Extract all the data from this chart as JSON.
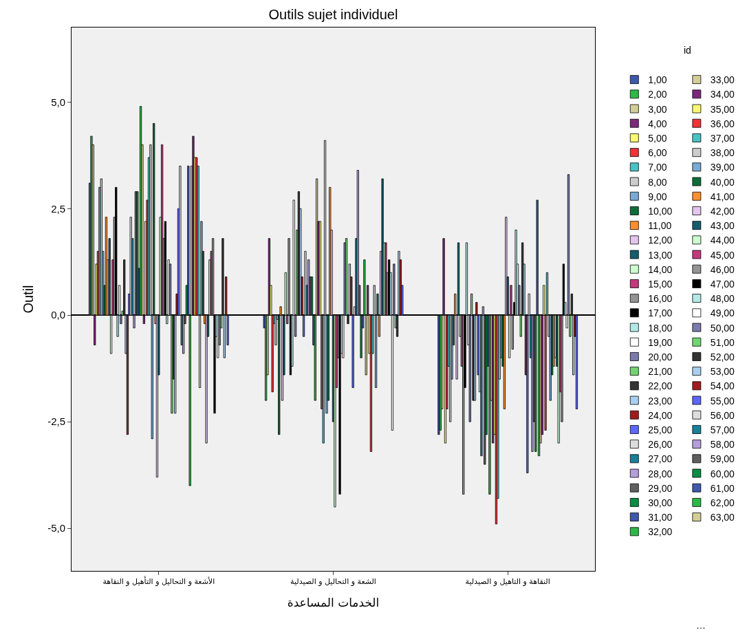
{
  "chart_data": {
    "type": "bar",
    "title": "Outils sujet individuel",
    "xlabel": "الخدمات المساعدة",
    "ylabel": "Outil",
    "legend_title": "id",
    "legend": "right",
    "categories": [
      "الأشعة و التحاليل و التأهيل و النقاهة",
      "الشعة و التحاليل و الصيدلية",
      "النقاهة و التاهيل و الصيدلية"
    ],
    "ylim": [
      -6.0,
      6.75
    ],
    "yticks": [
      {
        "value": -5,
        "label": "-5,0"
      },
      {
        "value": -2.5,
        "label": "-2,5"
      },
      {
        "value": 0,
        "label": "0,0"
      },
      {
        "value": 2.5,
        "label": "2,5"
      },
      {
        "value": 5,
        "label": "5,0"
      }
    ],
    "annotations": [
      "…"
    ],
    "series": [
      {
        "name": "1,00",
        "color": "#3e58ac",
        "values": [
          3.1,
          -0.3,
          -2.8
        ]
      },
      {
        "name": "2,00",
        "color": "#2eb848",
        "values": [
          4.2,
          -2.0,
          -2.7
        ]
      },
      {
        "name": "3,00",
        "color": "#d3ce97",
        "values": [
          4.0,
          -1.4,
          -2.2
        ]
      },
      {
        "name": "4,00",
        "color": "#7c287d",
        "values": [
          -0.7,
          1.8,
          1.8
        ]
      },
      {
        "name": "5,00",
        "color": "#fbf873",
        "values": [
          1.2,
          0.7,
          -3.0
        ]
      },
      {
        "name": "6,00",
        "color": "#ef3338",
        "values": [
          1.5,
          -1.8,
          -2.2
        ]
      },
      {
        "name": "7,00",
        "color": "#48c2c5",
        "values": [
          3.0,
          -0.2,
          -1.2
        ]
      },
      {
        "name": "8,00",
        "color": "#cccccc",
        "values": [
          3.2,
          -0.7,
          -2.5
        ]
      },
      {
        "name": "9,00",
        "color": "#7aaad5",
        "values": [
          1.5,
          -0.1,
          -1.5
        ]
      },
      {
        "name": "10,00",
        "color": "#0d6d3a",
        "values": [
          0.7,
          -2.8,
          -0.7
        ]
      },
      {
        "name": "11,00",
        "color": "#fd8f2f",
        "values": [
          2.3,
          0.2,
          0.5
        ]
      },
      {
        "name": "12,00",
        "color": "#e4c5f0",
        "values": [
          1.3,
          -2.0,
          -1.5
        ]
      },
      {
        "name": "13,00",
        "color": "#135d6d",
        "values": [
          1.8,
          -1.4,
          1.7
        ]
      },
      {
        "name": "14,00",
        "color": "#ccfece",
        "values": [
          -0.9,
          1.0,
          -0.5
        ]
      },
      {
        "name": "15,00",
        "color": "#c23a7c",
        "values": [
          1.3,
          -0.2,
          -1.2
        ]
      },
      {
        "name": "16,00",
        "color": "#939393",
        "values": [
          2.3,
          1.8,
          -4.2
        ]
      },
      {
        "name": "17,00",
        "color": "#000000",
        "values": [
          3.0,
          -1.4,
          -1.7
        ]
      },
      {
        "name": "18,00",
        "color": "#b3e8e8",
        "values": [
          -0.5,
          -1.2,
          1.7
        ]
      },
      {
        "name": "19,00",
        "color": "#ffffff",
        "values": [
          0.7,
          2.7,
          -0.7
        ]
      },
      {
        "name": "20,00",
        "color": "#7b7bad",
        "values": [
          -0.2,
          -0.5,
          -2.5
        ]
      },
      {
        "name": "21,00",
        "color": "#73d472",
        "values": [
          0.1,
          2.0,
          0.5
        ]
      },
      {
        "name": "22,00",
        "color": "#333333",
        "values": [
          1.3,
          2.9,
          -2.0
        ]
      },
      {
        "name": "23,00",
        "color": "#a9cff0",
        "values": [
          -0.9,
          2.5,
          -2.0
        ]
      },
      {
        "name": "24,00",
        "color": "#a01c1c",
        "values": [
          -2.8,
          0.9,
          0.3
        ]
      },
      {
        "name": "25,00",
        "color": "#5c67ff",
        "values": [
          0.5,
          -0.5,
          -1.4
        ]
      },
      {
        "name": "26,00",
        "color": "#dddddd",
        "values": [
          2.3,
          1.5,
          -1.8
        ]
      },
      {
        "name": "27,00",
        "color": "#1a7f9a",
        "values": [
          1.8,
          0.7,
          -3.3
        ]
      },
      {
        "name": "28,00",
        "color": "#b59fd8",
        "values": [
          -0.3,
          1.3,
          0.2
        ]
      },
      {
        "name": "29,00",
        "color": "#5f5f5f",
        "values": [
          2.9,
          0.9,
          -3.5
        ]
      },
      {
        "name": "30,00",
        "color": "#0b8c45",
        "values": [
          2.9,
          0.9,
          -2.8
        ]
      },
      {
        "name": "31,00",
        "color": "#3e58ac",
        "values": [
          1.1,
          -0.7,
          -1.2
        ]
      },
      {
        "name": "32,00",
        "color": "#2eb848",
        "values": [
          4.9,
          -2.0,
          -4.2
        ]
      },
      {
        "name": "33,00",
        "color": "#d3ce97",
        "values": [
          4.0,
          3.2,
          -2.0
        ]
      },
      {
        "name": "34,00",
        "color": "#7c287d",
        "values": [
          -0.2,
          2.2,
          -3.0
        ]
      },
      {
        "name": "35,00",
        "color": "#fbf873",
        "values": [
          2.2,
          2.2,
          -2.8
        ]
      },
      {
        "name": "36,00",
        "color": "#ef3338",
        "values": [
          2.7,
          -2.2,
          -4.9
        ]
      },
      {
        "name": "37,00",
        "color": "#48c2c5",
        "values": [
          3.7,
          -3.0,
          -4.3
        ]
      },
      {
        "name": "38,00",
        "color": "#cccccc",
        "values": [
          4.0,
          4.1,
          -1.5
        ]
      },
      {
        "name": "39,00",
        "color": "#7aaad5",
        "values": [
          -2.9,
          -2.3,
          -1.0
        ]
      },
      {
        "name": "40,00",
        "color": "#0d6d3a",
        "values": [
          4.5,
          -2.0,
          -1.2
        ]
      },
      {
        "name": "41,00",
        "color": "#fd8f2f",
        "values": [
          -0.2,
          3.0,
          -2.2
        ]
      },
      {
        "name": "42,00",
        "color": "#e4c5f0",
        "values": [
          -3.8,
          2.0,
          2.3
        ]
      },
      {
        "name": "43,00",
        "color": "#135d6d",
        "values": [
          -1.4,
          -2.5,
          0.9
        ]
      },
      {
        "name": "44,00",
        "color": "#ccfece",
        "values": [
          2.3,
          -4.5,
          -1.0
        ]
      },
      {
        "name": "45,00",
        "color": "#c23a7c",
        "values": [
          4.0,
          -1.7,
          0.7
        ]
      },
      {
        "name": "46,00",
        "color": "#939393",
        "values": [
          1.8,
          -1.0,
          -0.8
        ]
      },
      {
        "name": "47,00",
        "color": "#000000",
        "values": [
          2.2,
          -4.2,
          0.3
        ]
      },
      {
        "name": "48,00",
        "color": "#b3e8e8",
        "values": [
          -0.2,
          -0.9,
          2.0
        ]
      },
      {
        "name": "49,00",
        "color": "#ffffff",
        "values": [
          1.3,
          -1.0,
          1.2
        ]
      },
      {
        "name": "50,00",
        "color": "#7b7bad",
        "values": [
          1.2,
          1.7,
          0.7
        ]
      },
      {
        "name": "51,00",
        "color": "#73d472",
        "values": [
          -2.3,
          1.8,
          -0.5
        ]
      },
      {
        "name": "52,00",
        "color": "#333333",
        "values": [
          -1.5,
          -0.2,
          1.7
        ]
      },
      {
        "name": "53,00",
        "color": "#a9cff0",
        "values": [
          -2.3,
          1.2,
          1.2
        ]
      },
      {
        "name": "54,00",
        "color": "#a01c1c",
        "values": [
          0.5,
          0.9,
          -1.4
        ]
      },
      {
        "name": "55,00",
        "color": "#5c67ff",
        "values": [
          2.5,
          -1.7,
          -3.7
        ]
      },
      {
        "name": "56,00",
        "color": "#dddddd",
        "values": [
          3.5,
          0.2,
          0.5
        ]
      },
      {
        "name": "57,00",
        "color": "#1a7f9a",
        "values": [
          -0.7,
          1.8,
          -1.0
        ]
      },
      {
        "name": "58,00",
        "color": "#b59fd8",
        "values": [
          -0.9,
          3.4,
          -3.2
        ]
      },
      {
        "name": "59,00",
        "color": "#5f5f5f",
        "values": [
          -0.2,
          0.7,
          -2.5
        ]
      },
      {
        "name": "60,00",
        "color": "#0b8c45",
        "values": [
          0.7,
          -1.0,
          -3.2
        ]
      },
      {
        "name": "61,00",
        "color": "#3e58ac",
        "values": [
          3.5,
          -0.3,
          2.7
        ]
      },
      {
        "name": "62,00",
        "color": "#2eb848",
        "values": [
          -4.0,
          1.3,
          -3.3
        ]
      },
      {
        "name": "63,00",
        "color": "#d3ce97",
        "values": [
          3.5,
          -1.4,
          -3.0
        ]
      },
      {
        "color": "#7c287d",
        "values": [
          4.2,
          0.7,
          -2.8
        ]
      },
      {
        "color": "#fbf873",
        "values": [
          3.7,
          -0.9,
          0.7
        ]
      },
      {
        "color": "#ef3338",
        "values": [
          3.7,
          -3.2,
          -2.7
        ]
      },
      {
        "color": "#48c2c5",
        "values": [
          3.5,
          -0.9,
          1.0
        ]
      },
      {
        "color": "#cccccc",
        "values": [
          -1.7,
          0.7,
          -0.5
        ]
      },
      {
        "color": "#7aaad5",
        "values": [
          2.2,
          -1.7,
          -2.0
        ]
      },
      {
        "color": "#0d6d3a",
        "values": [
          1.5,
          0.5,
          -1.4
        ]
      },
      {
        "color": "#fd8f2f",
        "values": [
          -0.2,
          -0.5,
          -1.2
        ]
      },
      {
        "color": "#e4c5f0",
        "values": [
          -3.0,
          1.5,
          -1.0
        ]
      },
      {
        "color": "#135d6d",
        "values": [
          -0.5,
          3.2,
          -1.2
        ]
      },
      {
        "color": "#ccfece",
        "values": [
          1.3,
          1.7,
          -3.0
        ]
      },
      {
        "color": "#c23a7c",
        "values": [
          1.5,
          1.7,
          -1.8
        ]
      },
      {
        "color": "#939393",
        "values": [
          1.8,
          1.0,
          -2.5
        ]
      },
      {
        "color": "#000000",
        "values": [
          -2.3,
          1.3,
          1.2
        ]
      },
      {
        "color": "#b3e8e8",
        "values": [
          -0.5,
          1.0,
          0.3
        ]
      },
      {
        "color": "#ffffff",
        "values": [
          -1.0,
          -2.7,
          -0.3
        ]
      },
      {
        "color": "#7b7bad",
        "values": [
          -0.7,
          1.2,
          3.3
        ]
      },
      {
        "color": "#73d472",
        "values": [
          -0.3,
          -0.3,
          -0.5
        ]
      },
      {
        "color": "#333333",
        "values": [
          1.8,
          -0.5,
          0.5
        ]
      },
      {
        "color": "#a9cff0",
        "values": [
          -1.0,
          1.5,
          -1.4
        ]
      },
      {
        "color": "#a01c1c",
        "values": [
          0.9,
          1.3,
          -0.5
        ]
      },
      {
        "color": "#5c67ff",
        "values": [
          -0.7,
          0.7,
          -2.2
        ]
      }
    ]
  }
}
